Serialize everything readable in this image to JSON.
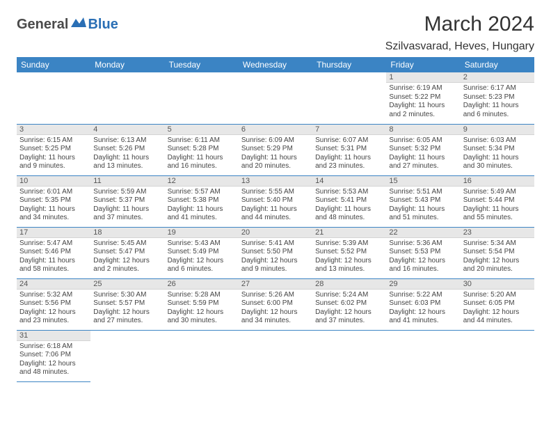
{
  "logo": {
    "text_dark": "General",
    "text_blue": "Blue"
  },
  "title": "March 2024",
  "location": "Szilvasvarad, Heves, Hungary",
  "colors": {
    "header_bg": "#3b84c4",
    "header_fg": "#ffffff",
    "daynum_bg": "#e7e7e7",
    "row_border": "#3b84c4",
    "logo_dark": "#4a4a4a",
    "logo_blue": "#2a6fb5"
  },
  "day_names": [
    "Sunday",
    "Monday",
    "Tuesday",
    "Wednesday",
    "Thursday",
    "Friday",
    "Saturday"
  ],
  "weeks": [
    [
      {
        "n": "",
        "sr": "",
        "ss": "",
        "dl": ""
      },
      {
        "n": "",
        "sr": "",
        "ss": "",
        "dl": ""
      },
      {
        "n": "",
        "sr": "",
        "ss": "",
        "dl": ""
      },
      {
        "n": "",
        "sr": "",
        "ss": "",
        "dl": ""
      },
      {
        "n": "",
        "sr": "",
        "ss": "",
        "dl": ""
      },
      {
        "n": "1",
        "sr": "Sunrise: 6:19 AM",
        "ss": "Sunset: 5:22 PM",
        "dl": "Daylight: 11 hours and 2 minutes."
      },
      {
        "n": "2",
        "sr": "Sunrise: 6:17 AM",
        "ss": "Sunset: 5:23 PM",
        "dl": "Daylight: 11 hours and 6 minutes."
      }
    ],
    [
      {
        "n": "3",
        "sr": "Sunrise: 6:15 AM",
        "ss": "Sunset: 5:25 PM",
        "dl": "Daylight: 11 hours and 9 minutes."
      },
      {
        "n": "4",
        "sr": "Sunrise: 6:13 AM",
        "ss": "Sunset: 5:26 PM",
        "dl": "Daylight: 11 hours and 13 minutes."
      },
      {
        "n": "5",
        "sr": "Sunrise: 6:11 AM",
        "ss": "Sunset: 5:28 PM",
        "dl": "Daylight: 11 hours and 16 minutes."
      },
      {
        "n": "6",
        "sr": "Sunrise: 6:09 AM",
        "ss": "Sunset: 5:29 PM",
        "dl": "Daylight: 11 hours and 20 minutes."
      },
      {
        "n": "7",
        "sr": "Sunrise: 6:07 AM",
        "ss": "Sunset: 5:31 PM",
        "dl": "Daylight: 11 hours and 23 minutes."
      },
      {
        "n": "8",
        "sr": "Sunrise: 6:05 AM",
        "ss": "Sunset: 5:32 PM",
        "dl": "Daylight: 11 hours and 27 minutes."
      },
      {
        "n": "9",
        "sr": "Sunrise: 6:03 AM",
        "ss": "Sunset: 5:34 PM",
        "dl": "Daylight: 11 hours and 30 minutes."
      }
    ],
    [
      {
        "n": "10",
        "sr": "Sunrise: 6:01 AM",
        "ss": "Sunset: 5:35 PM",
        "dl": "Daylight: 11 hours and 34 minutes."
      },
      {
        "n": "11",
        "sr": "Sunrise: 5:59 AM",
        "ss": "Sunset: 5:37 PM",
        "dl": "Daylight: 11 hours and 37 minutes."
      },
      {
        "n": "12",
        "sr": "Sunrise: 5:57 AM",
        "ss": "Sunset: 5:38 PM",
        "dl": "Daylight: 11 hours and 41 minutes."
      },
      {
        "n": "13",
        "sr": "Sunrise: 5:55 AM",
        "ss": "Sunset: 5:40 PM",
        "dl": "Daylight: 11 hours and 44 minutes."
      },
      {
        "n": "14",
        "sr": "Sunrise: 5:53 AM",
        "ss": "Sunset: 5:41 PM",
        "dl": "Daylight: 11 hours and 48 minutes."
      },
      {
        "n": "15",
        "sr": "Sunrise: 5:51 AM",
        "ss": "Sunset: 5:43 PM",
        "dl": "Daylight: 11 hours and 51 minutes."
      },
      {
        "n": "16",
        "sr": "Sunrise: 5:49 AM",
        "ss": "Sunset: 5:44 PM",
        "dl": "Daylight: 11 hours and 55 minutes."
      }
    ],
    [
      {
        "n": "17",
        "sr": "Sunrise: 5:47 AM",
        "ss": "Sunset: 5:46 PM",
        "dl": "Daylight: 11 hours and 58 minutes."
      },
      {
        "n": "18",
        "sr": "Sunrise: 5:45 AM",
        "ss": "Sunset: 5:47 PM",
        "dl": "Daylight: 12 hours and 2 minutes."
      },
      {
        "n": "19",
        "sr": "Sunrise: 5:43 AM",
        "ss": "Sunset: 5:49 PM",
        "dl": "Daylight: 12 hours and 6 minutes."
      },
      {
        "n": "20",
        "sr": "Sunrise: 5:41 AM",
        "ss": "Sunset: 5:50 PM",
        "dl": "Daylight: 12 hours and 9 minutes."
      },
      {
        "n": "21",
        "sr": "Sunrise: 5:39 AM",
        "ss": "Sunset: 5:52 PM",
        "dl": "Daylight: 12 hours and 13 minutes."
      },
      {
        "n": "22",
        "sr": "Sunrise: 5:36 AM",
        "ss": "Sunset: 5:53 PM",
        "dl": "Daylight: 12 hours and 16 minutes."
      },
      {
        "n": "23",
        "sr": "Sunrise: 5:34 AM",
        "ss": "Sunset: 5:54 PM",
        "dl": "Daylight: 12 hours and 20 minutes."
      }
    ],
    [
      {
        "n": "24",
        "sr": "Sunrise: 5:32 AM",
        "ss": "Sunset: 5:56 PM",
        "dl": "Daylight: 12 hours and 23 minutes."
      },
      {
        "n": "25",
        "sr": "Sunrise: 5:30 AM",
        "ss": "Sunset: 5:57 PM",
        "dl": "Daylight: 12 hours and 27 minutes."
      },
      {
        "n": "26",
        "sr": "Sunrise: 5:28 AM",
        "ss": "Sunset: 5:59 PM",
        "dl": "Daylight: 12 hours and 30 minutes."
      },
      {
        "n": "27",
        "sr": "Sunrise: 5:26 AM",
        "ss": "Sunset: 6:00 PM",
        "dl": "Daylight: 12 hours and 34 minutes."
      },
      {
        "n": "28",
        "sr": "Sunrise: 5:24 AM",
        "ss": "Sunset: 6:02 PM",
        "dl": "Daylight: 12 hours and 37 minutes."
      },
      {
        "n": "29",
        "sr": "Sunrise: 5:22 AM",
        "ss": "Sunset: 6:03 PM",
        "dl": "Daylight: 12 hours and 41 minutes."
      },
      {
        "n": "30",
        "sr": "Sunrise: 5:20 AM",
        "ss": "Sunset: 6:05 PM",
        "dl": "Daylight: 12 hours and 44 minutes."
      }
    ],
    [
      {
        "n": "31",
        "sr": "Sunrise: 6:18 AM",
        "ss": "Sunset: 7:06 PM",
        "dl": "Daylight: 12 hours and 48 minutes."
      },
      {
        "n": "",
        "sr": "",
        "ss": "",
        "dl": ""
      },
      {
        "n": "",
        "sr": "",
        "ss": "",
        "dl": ""
      },
      {
        "n": "",
        "sr": "",
        "ss": "",
        "dl": ""
      },
      {
        "n": "",
        "sr": "",
        "ss": "",
        "dl": ""
      },
      {
        "n": "",
        "sr": "",
        "ss": "",
        "dl": ""
      },
      {
        "n": "",
        "sr": "",
        "ss": "",
        "dl": ""
      }
    ]
  ]
}
